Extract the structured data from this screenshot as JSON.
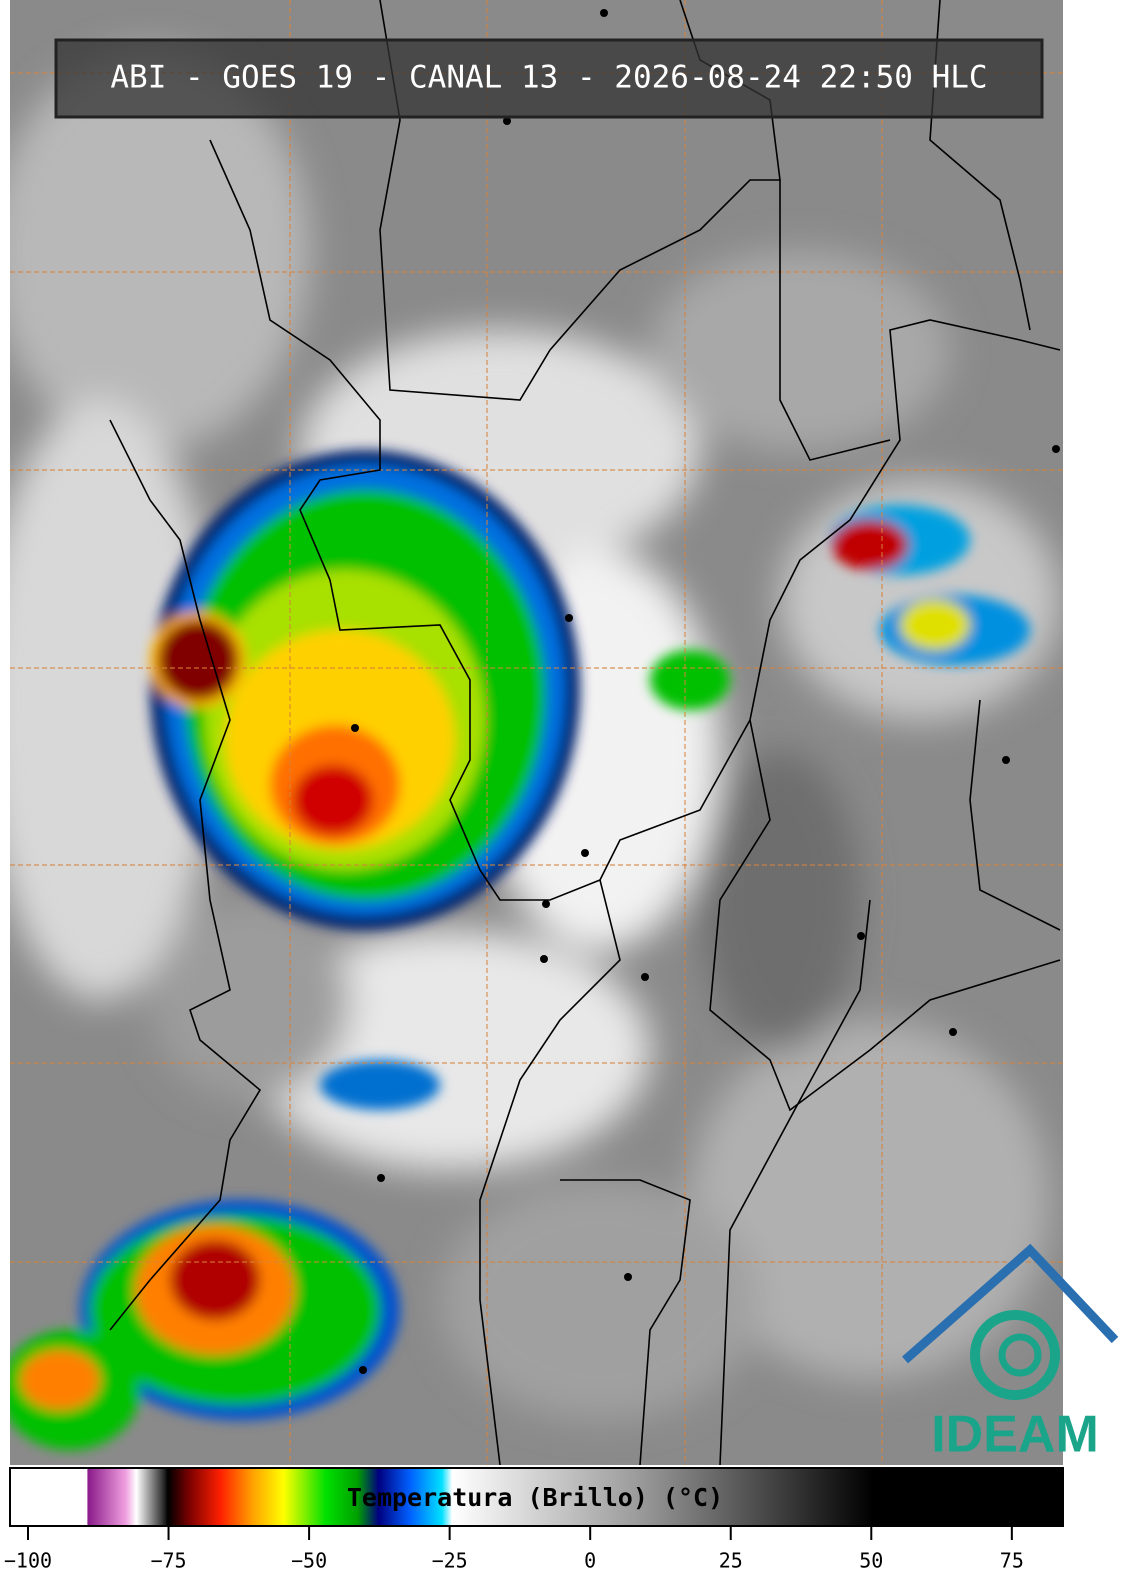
{
  "title": "ABI - GOES 19 - CANAL 13 - 2026-08-24 22:50 HLC",
  "logo": "IDEAM",
  "colorbar": {
    "label": "Temperatura (Brillo) (°C)",
    "xlim": [
      -103.2,
      84.1
    ],
    "xticks": [
      {
        "value": -100,
        "label": "−100"
      },
      {
        "value": -75,
        "label": "−75"
      },
      {
        "value": -50,
        "label": "−50"
      },
      {
        "value": -25,
        "label": "−25"
      },
      0,
      25,
      50,
      75
    ]
  }
}
